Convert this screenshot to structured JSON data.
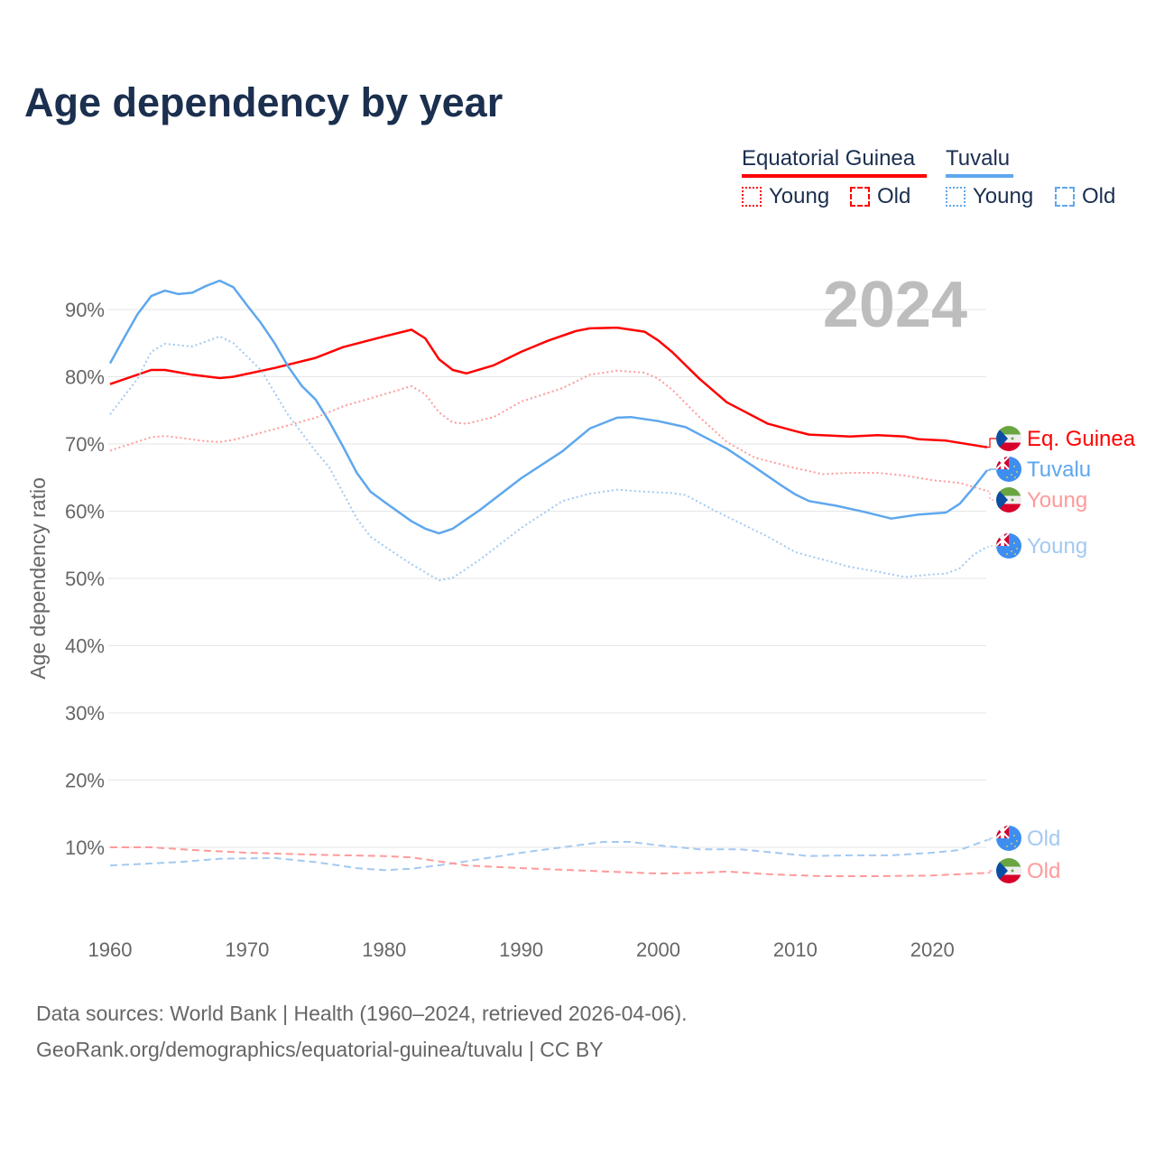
{
  "header": {
    "title": "Age dependency by year"
  },
  "legend": {
    "countries": [
      {
        "name": "Equatorial Guinea",
        "color": "#ff0000",
        "young_label": "Young",
        "old_label": "Old"
      },
      {
        "name": "Tuvalu",
        "color": "#5ea7ee",
        "young_label": "Young",
        "old_label": "Old"
      }
    ]
  },
  "footer": {
    "source": "Data sources: World Bank | Health (1960–2024, retrieved 2026-04-06).",
    "link": "GeoRank.org/demographics/equatorial-guinea/tuvalu | CC BY"
  },
  "chart_data": {
    "type": "line",
    "title": "Age dependency by year",
    "year_watermark": "2024",
    "xlabel": "",
    "ylabel": "Age dependency ratio",
    "xlim": [
      1960,
      2024
    ],
    "ylim": [
      0,
      100
    ],
    "x_ticks": [
      "1960",
      "1970",
      "1980",
      "1990",
      "2000",
      "2010",
      "2020"
    ],
    "y_ticks": [
      "10%",
      "20%",
      "30%",
      "40%",
      "50%",
      "60%",
      "70%",
      "80%",
      "90%"
    ],
    "grid": true,
    "series": [
      {
        "name": "Equatorial Guinea",
        "end_label": "Eq. Guinea",
        "style": "solid",
        "color": "#ff0000",
        "label_color": "#ff0000",
        "x": [
          1960,
          1963,
          1964,
          1966,
          1968,
          1969,
          1972,
          1975,
          1977,
          1980,
          1982,
          1983,
          1984,
          1985,
          1986,
          1988,
          1990,
          1992,
          1994,
          1995,
          1997,
          1999,
          2000,
          2001,
          2003,
          2005,
          2008,
          2010,
          2011,
          2014,
          2016,
          2018,
          2019,
          2021,
          2024
        ],
        "y": [
          78.9,
          81,
          81,
          80.3,
          79.8,
          80,
          81.3,
          82.8,
          84.4,
          86,
          87,
          85.7,
          82.6,
          81,
          80.5,
          81.7,
          83.7,
          85.4,
          86.8,
          87.2,
          87.3,
          86.7,
          85.4,
          83.7,
          79.7,
          76.2,
          73,
          71.9,
          71.4,
          71.1,
          71.3,
          71.1,
          70.7,
          70.5,
          69.5
        ]
      },
      {
        "name": "Tuvalu",
        "end_label": "Tuvalu",
        "style": "solid",
        "color": "#5ea7ee",
        "label_color": "#5ea7ee",
        "x": [
          1960,
          1961,
          1962,
          1963,
          1964,
          1965,
          1966,
          1967,
          1968,
          1969,
          1970,
          1971,
          1972,
          1973,
          1974,
          1975,
          1976,
          1977,
          1978,
          1979,
          1980,
          1982,
          1983,
          1984,
          1985,
          1987,
          1990,
          1993,
          1995,
          1997,
          1998,
          2000,
          2002,
          2005,
          2007,
          2009,
          2010,
          2011,
          2013,
          2015,
          2017,
          2019,
          2021,
          2022,
          2023,
          2024
        ],
        "y": [
          82,
          85.7,
          89.3,
          92,
          92.8,
          92.3,
          92.5,
          93.5,
          94.3,
          93.3,
          90.6,
          88,
          85,
          81.5,
          78.6,
          76.6,
          73.3,
          69.6,
          65.7,
          62.9,
          61.4,
          58.5,
          57.4,
          56.7,
          57.4,
          60.2,
          64.9,
          68.9,
          72.3,
          73.9,
          74,
          73.4,
          72.5,
          69.3,
          66.6,
          63.8,
          62.5,
          61.5,
          60.8,
          59.9,
          58.9,
          59.5,
          59.8,
          61.1,
          63.5,
          66.1
        ]
      },
      {
        "name": "Equatorial Guinea Young",
        "end_label": "Young",
        "style": "dotted",
        "color": "#ff9a9a",
        "label_color": "#ff9a9a",
        "x": [
          1960,
          1963,
          1964,
          1967,
          1968,
          1969,
          1972,
          1975,
          1977,
          1980,
          1982,
          1983,
          1984,
          1985,
          1986,
          1988,
          1990,
          1993,
          1995,
          1997,
          1999,
          2000,
          2001,
          2003,
          2005,
          2007,
          2010,
          2012,
          2014,
          2016,
          2018,
          2020,
          2022,
          2024
        ],
        "y": [
          69,
          71,
          71.2,
          70.4,
          70.3,
          70.6,
          72.2,
          73.9,
          75.6,
          77.4,
          78.6,
          77.4,
          74.7,
          73.2,
          73,
          74,
          76.3,
          78.3,
          80.3,
          80.9,
          80.6,
          79.7,
          78.1,
          74,
          70.3,
          68,
          66.4,
          65.5,
          65.7,
          65.7,
          65.3,
          64.6,
          64.2,
          63
        ]
      },
      {
        "name": "Tuvalu Young",
        "end_label": "Young",
        "style": "dotted",
        "color": "#a3c9f1",
        "label_color": "#a3c9f1",
        "x": [
          1960,
          1962,
          1963,
          1964,
          1966,
          1968,
          1969,
          1971,
          1973,
          1975,
          1976,
          1978,
          1979,
          1980,
          1982,
          1984,
          1985,
          1987,
          1990,
          1993,
          1995,
          1997,
          1999,
          2001,
          2002,
          2004,
          2006,
          2008,
          2010,
          2012,
          2014,
          2016,
          2018,
          2020,
          2021,
          2022,
          2023,
          2024
        ],
        "y": [
          74.4,
          79.7,
          83.7,
          84.9,
          84.5,
          86,
          85,
          81,
          74.3,
          68.9,
          66.5,
          58.9,
          56.2,
          54.8,
          52.1,
          49.7,
          50.1,
          52.8,
          57.5,
          61.5,
          62.6,
          63.2,
          62.9,
          62.7,
          62.4,
          60.2,
          58.2,
          56.2,
          53.9,
          52.8,
          51.7,
          51,
          50.2,
          50.6,
          50.7,
          51.5,
          53.5,
          54.7
        ]
      },
      {
        "name": "Tuvalu Old",
        "end_label": "Old",
        "style": "dashed",
        "color": "#a3c9f1",
        "label_color": "#a3c9f1",
        "x": [
          1960,
          1965,
          1968,
          1972,
          1975,
          1978,
          1980,
          1982,
          1985,
          1990,
          1993,
          1996,
          1998,
          2000,
          2003,
          2006,
          2008,
          2011,
          2014,
          2017,
          2020,
          2022,
          2024
        ],
        "y": [
          7.3,
          7.8,
          8.3,
          8.4,
          7.8,
          6.9,
          6.6,
          6.8,
          7.6,
          9.2,
          10,
          10.8,
          10.8,
          10.3,
          9.7,
          9.7,
          9.3,
          8.7,
          8.8,
          8.8,
          9.2,
          9.6,
          11.1
        ]
      },
      {
        "name": "Equatorial Guinea Old",
        "end_label": "Old",
        "style": "dashed",
        "color": "#ff9a9a",
        "label_color": "#ff9a9a",
        "x": [
          1960,
          1963,
          1966,
          1970,
          1975,
          1980,
          1982,
          1984,
          1986,
          1990,
          1995,
          2000,
          2003,
          2005,
          2008,
          2012,
          2016,
          2020,
          2024
        ],
        "y": [
          10,
          10,
          9.6,
          9.2,
          8.9,
          8.7,
          8.5,
          7.9,
          7.3,
          6.9,
          6.5,
          6.1,
          6.2,
          6.4,
          6,
          5.7,
          5.7,
          5.8,
          6.2
        ]
      }
    ]
  }
}
